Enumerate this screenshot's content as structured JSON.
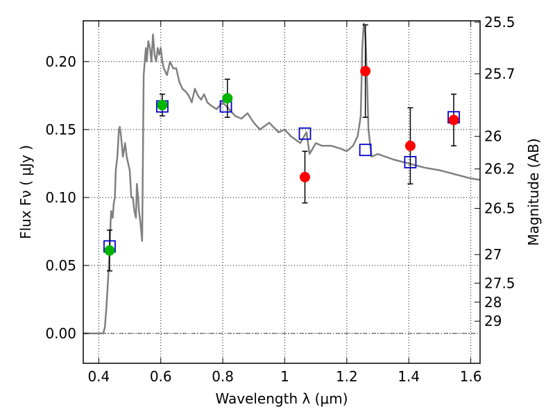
{
  "chart_data": {
    "type": "scatter",
    "xlabel": "Wavelength  λ (μm)",
    "ylabel": "Flux  Fν  ( μJy )",
    "y2label": "Magnitude (AB)",
    "xlim": [
      0.35,
      1.63
    ],
    "ylim": [
      -0.022,
      0.23
    ],
    "grid": true,
    "x_ticks": [
      0.4,
      0.6,
      0.8,
      1.0,
      1.2,
      1.4,
      1.6
    ],
    "x_tick_labels": [
      "0.4",
      "0.6",
      "0.8",
      "1",
      "1.2",
      "1.4",
      "1.6"
    ],
    "y_ticks": [
      0.0,
      0.05,
      0.1,
      0.15,
      0.2
    ],
    "y_tick_labels": [
      "0.00",
      "0.05",
      "0.10",
      "0.15",
      "0.20"
    ],
    "mag_ticks": [
      {
        "label": "25.5",
        "flux": 0.229
      },
      {
        "label": "25.7",
        "flux": 0.191
      },
      {
        "label": "26",
        "flux": 0.145
      },
      {
        "label": "26.2",
        "flux": 0.121
      },
      {
        "label": "26.5",
        "flux": 0.092
      },
      {
        "label": "27",
        "flux": 0.058
      },
      {
        "label": "27.5",
        "flux": 0.037
      },
      {
        "label": "28",
        "flux": 0.023
      },
      {
        "label": "29",
        "flux": 0.009
      }
    ],
    "series": [
      {
        "type": "line",
        "color": "#808080",
        "x": [
          0.35,
          0.39,
          0.41,
          0.415,
          0.42,
          0.425,
          0.43,
          0.435,
          0.438,
          0.44,
          0.445,
          0.448,
          0.452,
          0.455,
          0.46,
          0.465,
          0.468,
          0.472,
          0.478,
          0.485,
          0.49,
          0.495,
          0.5,
          0.505,
          0.51,
          0.515,
          0.52,
          0.523,
          0.527,
          0.53,
          0.535,
          0.54,
          0.545,
          0.55,
          0.552,
          0.555,
          0.56,
          0.565,
          0.57,
          0.575,
          0.58,
          0.585,
          0.59,
          0.595,
          0.6,
          0.605,
          0.61,
          0.62,
          0.63,
          0.64,
          0.65,
          0.66,
          0.67,
          0.68,
          0.69,
          0.7,
          0.71,
          0.72,
          0.73,
          0.74,
          0.75,
          0.76,
          0.78,
          0.8,
          0.82,
          0.84,
          0.86,
          0.88,
          0.9,
          0.92,
          0.95,
          0.98,
          1.0,
          1.02,
          1.05,
          1.07,
          1.08,
          1.1,
          1.12,
          1.15,
          1.18,
          1.2,
          1.22,
          1.235,
          1.245,
          1.25,
          1.255,
          1.26,
          1.265,
          1.27,
          1.28,
          1.3,
          1.35,
          1.4,
          1.45,
          1.5,
          1.55,
          1.6,
          1.63
        ],
        "y": [
          0.0,
          0.0,
          0.0,
          0.0,
          0.005,
          0.02,
          0.04,
          0.06,
          0.08,
          0.09,
          0.085,
          0.095,
          0.1,
          0.12,
          0.13,
          0.15,
          0.152,
          0.145,
          0.13,
          0.14,
          0.13,
          0.125,
          0.12,
          0.1,
          0.1,
          0.09,
          0.085,
          0.11,
          0.1,
          0.09,
          0.08,
          0.068,
          0.19,
          0.205,
          0.21,
          0.2,
          0.215,
          0.21,
          0.2,
          0.22,
          0.205,
          0.2,
          0.21,
          0.205,
          0.21,
          0.2,
          0.195,
          0.19,
          0.2,
          0.195,
          0.195,
          0.185,
          0.18,
          0.178,
          0.175,
          0.17,
          0.18,
          0.175,
          0.172,
          0.176,
          0.17,
          0.168,
          0.165,
          0.17,
          0.165,
          0.16,
          0.158,
          0.162,
          0.155,
          0.15,
          0.155,
          0.148,
          0.15,
          0.145,
          0.14,
          0.148,
          0.132,
          0.14,
          0.138,
          0.138,
          0.136,
          0.134,
          0.138,
          0.145,
          0.16,
          0.21,
          0.228,
          0.22,
          0.19,
          0.15,
          0.13,
          0.132,
          0.128,
          0.125,
          0.122,
          0.12,
          0.117,
          0.114,
          0.113
        ]
      },
      {
        "type": "squares",
        "color": "#0000cc",
        "x": [
          0.435,
          0.605,
          0.81,
          1.065,
          1.26,
          1.405,
          1.545
        ],
        "y": [
          0.064,
          0.167,
          0.167,
          0.147,
          0.135,
          0.126,
          0.159
        ]
      },
      {
        "type": "circles",
        "color": "#00b400",
        "x": [
          0.435,
          0.605,
          0.815
        ],
        "y": [
          0.061,
          0.168,
          0.173
        ],
        "err": [
          0.015,
          0.008,
          0.014
        ]
      },
      {
        "type": "circles",
        "color": "#ff0000",
        "x": [
          1.065,
          1.26,
          1.405,
          1.545
        ],
        "y": [
          0.115,
          0.193,
          0.138,
          0.157
        ],
        "err": [
          0.019,
          0.034,
          0.028,
          0.019
        ]
      }
    ]
  }
}
